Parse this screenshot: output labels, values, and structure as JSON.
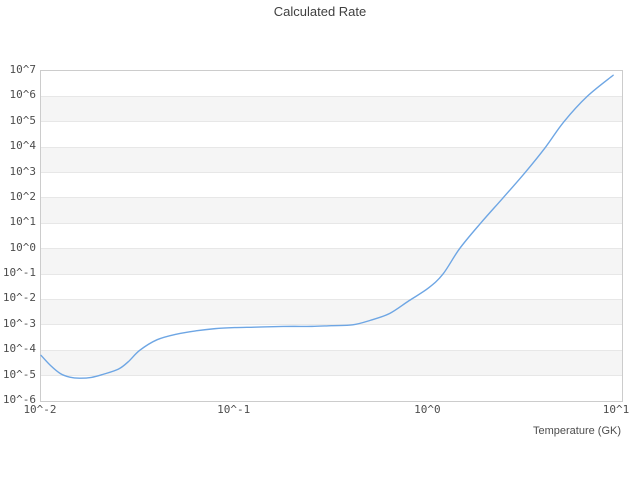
{
  "chart_data": {
    "type": "line",
    "title": "Calculated Rate",
    "xlabel": "Temperature (GK)",
    "ylabel": "",
    "x_scale": "log",
    "y_scale": "log",
    "xlim": [
      0.01,
      10
    ],
    "ylim": [
      1e-06,
      10000000.0
    ],
    "x_tick_labels": [
      "10^-2",
      "10^-1",
      "10^0",
      "10^1"
    ],
    "y_tick_labels": [
      "10^7",
      "10^6",
      "10^5",
      "10^4",
      "10^3",
      "10^2",
      "10^1",
      "10^0",
      "10^-1",
      "10^-2",
      "10^-3",
      "10^-4",
      "10^-5",
      "10^-6"
    ],
    "grid": "horizontal decade gridlines with alternating shaded bands",
    "legend": "none",
    "series": [
      {
        "name": "Calculated Rate",
        "color": "#6ea6e4",
        "points": [
          [
            0.01,
            6.3e-05
          ],
          [
            0.0112,
            2.5e-05
          ],
          [
            0.0126,
            1.2e-05
          ],
          [
            0.0141,
            8.7e-06
          ],
          [
            0.0158,
            7.9e-06
          ],
          [
            0.0182,
            8.5e-06
          ],
          [
            0.0209,
            1.12e-05
          ],
          [
            0.0251,
            1.8e-05
          ],
          [
            0.0282,
            3.5e-05
          ],
          [
            0.0324,
            0.0001
          ],
          [
            0.0398,
            0.00026
          ],
          [
            0.0501,
            0.00043
          ],
          [
            0.0631,
            0.00058
          ],
          [
            0.0794,
            0.00071
          ],
          [
            0.1,
            0.00078
          ],
          [
            0.126,
            0.00081
          ],
          [
            0.158,
            0.00085
          ],
          [
            0.2,
            0.00087
          ],
          [
            0.251,
            0.00087
          ],
          [
            0.316,
            0.00093
          ],
          [
            0.407,
            0.001
          ],
          [
            0.501,
            0.0015
          ],
          [
            0.631,
            0.0028
          ],
          [
            0.794,
            0.0089
          ],
          [
            1.0,
            0.028
          ],
          [
            1.19,
            0.1
          ],
          [
            1.45,
            1.0
          ],
          [
            1.86,
            10
          ],
          [
            2.43,
            100
          ],
          [
            3.16,
            1000.0
          ],
          [
            4.03,
            10000.0
          ],
          [
            5.01,
            100000.0
          ],
          [
            6.61,
            1000000.0
          ],
          [
            9.0,
            6800000.0
          ]
        ]
      }
    ],
    "colors": {
      "line": "#6ea6e4",
      "band_alt": "#f5f5f5",
      "gridline": "#e7e7e7",
      "plot_border": "#cccccc",
      "title_text": "#404040",
      "tick_text": "#4d4d4d",
      "background": "#ffffff"
    }
  }
}
